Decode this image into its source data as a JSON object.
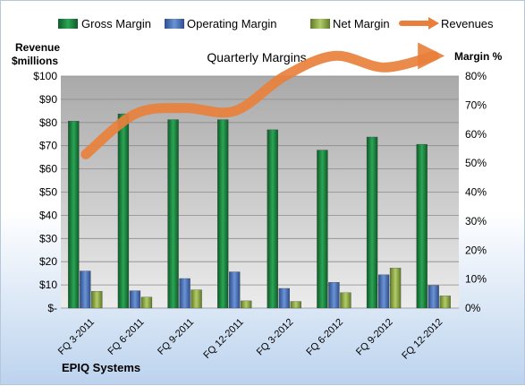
{
  "chart_data": {
    "type": "bar",
    "title": "Quarterly Margins",
    "company": "EPIQ Systems",
    "left_axis_label_line1": "Revenue",
    "left_axis_label_line2": "$millions",
    "right_axis_label": "Margin %",
    "categories": [
      "FQ 3-2011",
      "FQ 6-2011",
      "FQ 9-2011",
      "FQ 12-2011",
      "FQ 3-2012",
      "FQ 6-2012",
      "FQ 9-2012",
      "FQ 12-2012"
    ],
    "left_ticks": [
      "$-",
      "$10",
      "$20",
      "$30",
      "$40",
      "$50",
      "$60",
      "$70",
      "$80",
      "$90",
      "$100"
    ],
    "right_ticks": [
      "0%",
      "10%",
      "20%",
      "30%",
      "40%",
      "50%",
      "60%",
      "70%",
      "80%"
    ],
    "ylim_left": [
      0,
      100
    ],
    "ylim_right": [
      0,
      80
    ],
    "grid": true,
    "legend_position": "top",
    "series": [
      {
        "name": "Gross Margin",
        "axis": "right",
        "color": "#1f8a45",
        "values": [
          64.5,
          67,
          65,
          65,
          61.5,
          54.5,
          59,
          56.5
        ]
      },
      {
        "name": "Operating Margin",
        "axis": "right",
        "color": "#4a73b8",
        "values": [
          12.8,
          6,
          10.2,
          12.5,
          6.8,
          8.9,
          11.5,
          7.8
        ]
      },
      {
        "name": "Net Margin",
        "axis": "right",
        "color": "#8fa94a",
        "values": [
          5.8,
          3.8,
          6.3,
          2.5,
          2.3,
          5.3,
          13.8,
          4.2
        ]
      },
      {
        "name": "Revenues",
        "axis": "left",
        "color": "#e8803c",
        "type": "line",
        "values": [
          53,
          67,
          69,
          68,
          80,
          87,
          83,
          87
        ]
      }
    ]
  }
}
